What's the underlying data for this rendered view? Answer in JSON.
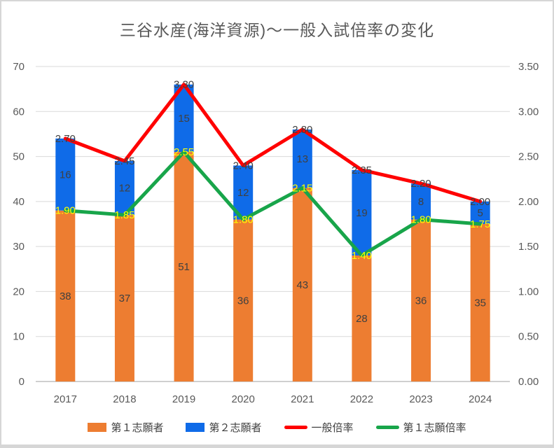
{
  "chart_data": {
    "type": "combo: stacked-bar + line",
    "title": "三谷水産(海洋資源)～一般入試倍率の変化",
    "categories": [
      "2017",
      "2018",
      "2019",
      "2020",
      "2021",
      "2022",
      "2023",
      "2024"
    ],
    "series": [
      {
        "name": "第１志願者",
        "type": "bar",
        "stack": "applicants",
        "axis": "left",
        "color": "#ED7D31",
        "values": [
          38,
          37,
          51,
          36,
          43,
          28,
          36,
          35
        ]
      },
      {
        "name": "第２志願者",
        "type": "bar",
        "stack": "applicants",
        "axis": "left",
        "color": "#0F6BE8",
        "values": [
          16,
          12,
          15,
          12,
          13,
          19,
          8,
          5
        ]
      },
      {
        "name": "一般倍率",
        "type": "line",
        "axis": "right",
        "color": "#FF0000",
        "values": [
          2.7,
          2.45,
          3.3,
          2.4,
          2.8,
          2.35,
          2.2,
          2.0
        ],
        "labels": [
          "2.70",
          "2.45",
          "3.30",
          "2.40",
          "2.80",
          "2.35",
          "2.20",
          "2.00"
        ],
        "label_color": "#404040"
      },
      {
        "name": "第１志願倍率",
        "type": "line",
        "axis": "right",
        "color": "#18A54A",
        "values": [
          1.9,
          1.85,
          2.55,
          1.8,
          2.15,
          1.4,
          1.8,
          1.75
        ],
        "labels": [
          "1.90",
          "1.85",
          "2.55",
          "1.80",
          "2.15",
          "1.40",
          "1.80",
          "1.75"
        ],
        "label_color": "#FFFF00"
      }
    ],
    "left_axis": {
      "min": 0,
      "max": 70,
      "step": 10,
      "tick_labels": [
        "0",
        "10",
        "20",
        "30",
        "40",
        "50",
        "60",
        "70"
      ]
    },
    "right_axis": {
      "min": 0,
      "max": 3.5,
      "step": 0.5,
      "tick_labels": [
        "0.00",
        "0.50",
        "1.00",
        "1.50",
        "2.00",
        "2.50",
        "3.00",
        "3.50"
      ]
    },
    "grid": true,
    "legend_position": "bottom",
    "styles": {
      "background": "#FFFFFF",
      "frame_border_color": "#D6D6D6",
      "grid_color": "#D9D9D9",
      "axis_line_color": "#BFBFBF",
      "tick_label_color": "#595959",
      "category_label_color": "#595959",
      "bar_label_color": "#404040",
      "title_color": "#595959"
    }
  }
}
